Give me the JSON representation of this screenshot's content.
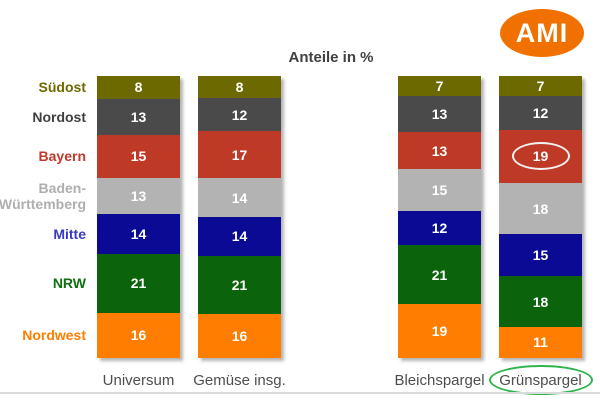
{
  "title": "Anteile in %",
  "logo": {
    "text": "AMI",
    "bg_color": "#F07000",
    "text_color": "#FFFFFF"
  },
  "regions": [
    {
      "label": "Südost",
      "color": "#6B6900",
      "label_color": "#6E6A00"
    },
    {
      "label": "Nordost",
      "color": "#4A4A4A",
      "label_color": "#3F3F3F"
    },
    {
      "label": "Bayern",
      "color": "#BE3A26",
      "label_color": "#C0392B"
    },
    {
      "label": "Baden-Württemberg",
      "color": "#B3B3B3",
      "label_color": "#AFAFAF"
    },
    {
      "label": "Mitte",
      "color": "#0A0A94",
      "label_color": "#3A3ABF"
    },
    {
      "label": "NRW",
      "color": "#0B630B",
      "label_color": "#107010"
    },
    {
      "label": "Nordwest",
      "color": "#FF7D00",
      "label_color": "#FF7D00"
    }
  ],
  "chart_data": {
    "type": "bar",
    "stacked": true,
    "orientation": "vertical",
    "unit": "%",
    "title": "Anteile in %",
    "categories": [
      "Universum",
      "Gemüse insg.",
      "Bleichspargel",
      "Grünspargel"
    ],
    "region_order_top_to_bottom": [
      "Südost",
      "Nordost",
      "Bayern",
      "Baden-Württemberg",
      "Mitte",
      "NRW",
      "Nordwest"
    ],
    "series": [
      {
        "name": "Südost",
        "values": [
          8,
          8,
          7,
          7
        ]
      },
      {
        "name": "Nordost",
        "values": [
          13,
          12,
          13,
          12
        ]
      },
      {
        "name": "Bayern",
        "values": [
          15,
          17,
          13,
          19
        ]
      },
      {
        "name": "Baden-Württemberg",
        "values": [
          13,
          14,
          15,
          18
        ]
      },
      {
        "name": "Mitte",
        "values": [
          14,
          14,
          12,
          15
        ]
      },
      {
        "name": "NRW",
        "values": [
          21,
          21,
          21,
          18
        ]
      },
      {
        "name": "Nordwest",
        "values": [
          16,
          16,
          19,
          11
        ]
      }
    ],
    "value_labels": "white bold inside segments",
    "legend_position": "left-as-row-labels",
    "grid": false,
    "annotations": {
      "value_circle": {
        "category_index": 3,
        "series_index": 2,
        "stroke": "#F2F2F2"
      },
      "category_circle": {
        "category_index": 3,
        "stroke": "#2EB44C"
      }
    }
  },
  "divider_color": "#DADADA"
}
